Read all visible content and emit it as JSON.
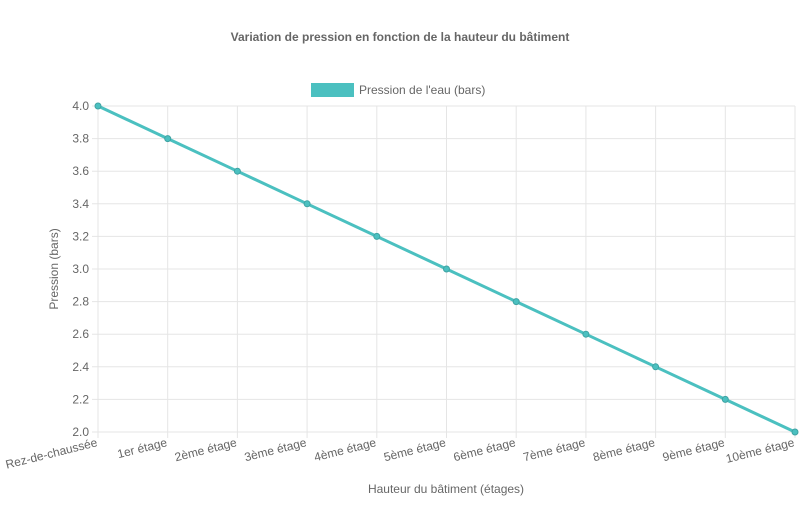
{
  "chart_data": {
    "type": "line",
    "title": "Variation de pression en fonction de la hauteur du bâtiment",
    "xlabel": "Hauteur du bâtiment (étages)",
    "ylabel": "Pression (bars)",
    "categories": [
      "Rez-de-chaussée",
      "1er étage",
      "2ème étage",
      "3ème étage",
      "4ème étage",
      "5ème étage",
      "6ème étage",
      "7ème étage",
      "8ème étage",
      "9ème étage",
      "10ème étage"
    ],
    "series": [
      {
        "name": "Pression de l'eau (bars)",
        "values": [
          4.0,
          3.8,
          3.6,
          3.4,
          3.2,
          3.0,
          2.8,
          2.6,
          2.4,
          2.2,
          2.0
        ],
        "color": "#4bc0c0"
      }
    ],
    "ylim": [
      2.0,
      4.0
    ],
    "yticks": [
      "4.0",
      "3.8",
      "3.6",
      "3.4",
      "3.2",
      "3.0",
      "2.8",
      "2.6",
      "2.4",
      "2.2",
      "2.0"
    ],
    "grid": true,
    "legend_position": "top"
  }
}
